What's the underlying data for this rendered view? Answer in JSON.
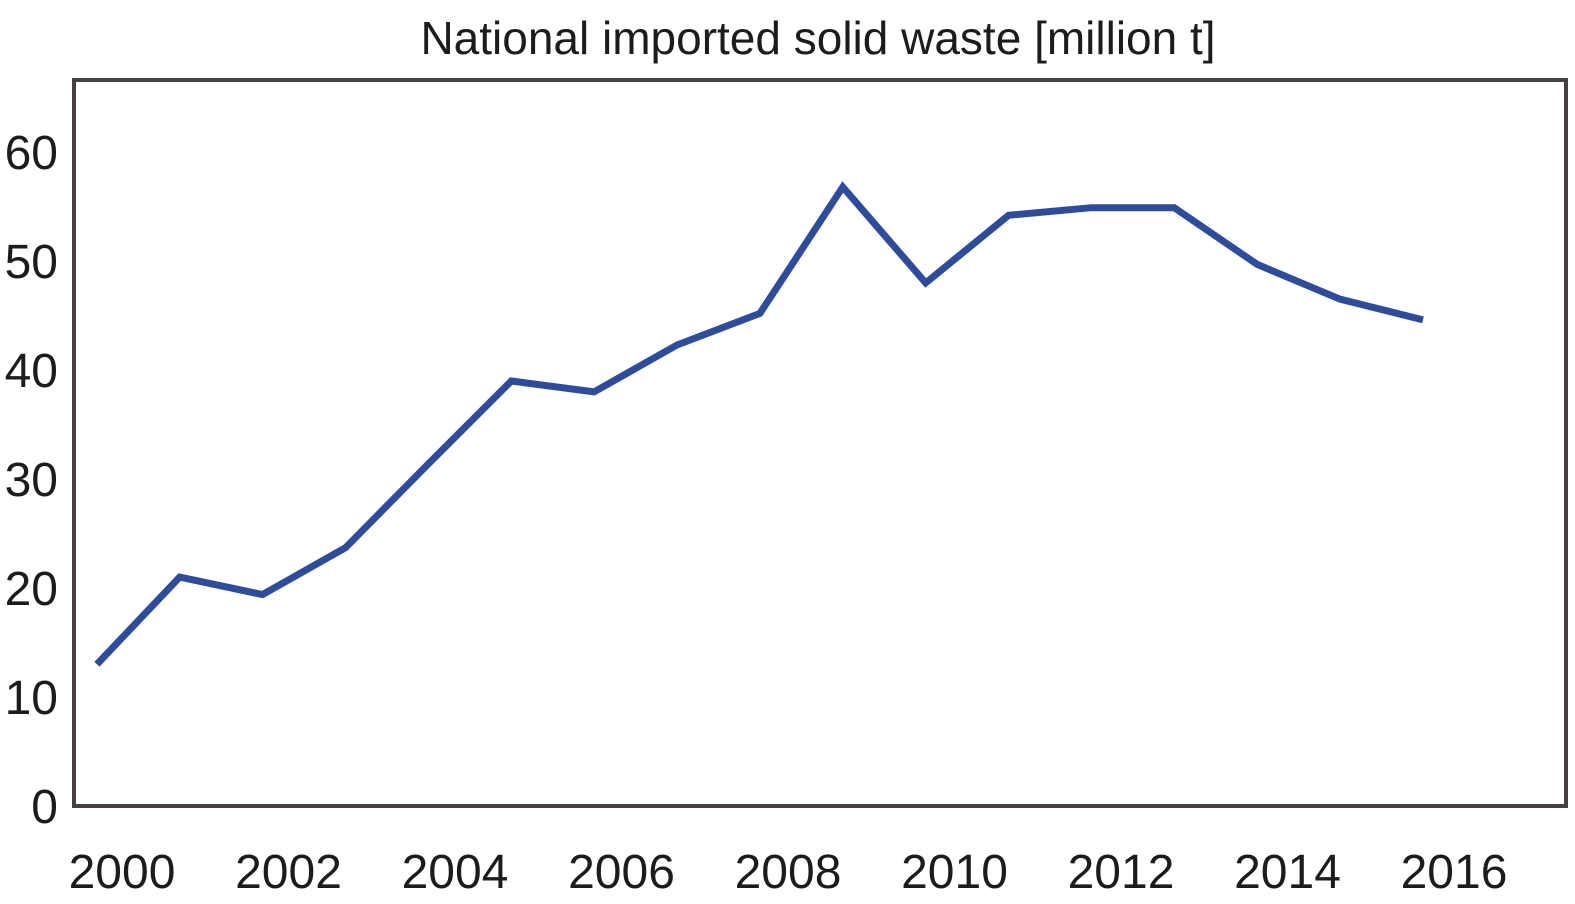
{
  "figure": {
    "title": "National imported solid waste [million t]"
  },
  "colors": {
    "line": "#2e4c9a",
    "axis": "#464040",
    "text": "#1c1c1c",
    "background": "#ffffff"
  },
  "chart_data": {
    "type": "line",
    "title": "National imported solid waste [million t]",
    "xlabel": "",
    "ylabel": "",
    "x": [
      2000,
      2001,
      2002,
      2003,
      2004,
      2005,
      2006,
      2007,
      2008,
      2009,
      2010,
      2011,
      2012,
      2013,
      2014,
      2015,
      2016
    ],
    "values": [
      13,
      21,
      19.4,
      23.7,
      31.4,
      39,
      38,
      42.3,
      45.2,
      56.8,
      48,
      54.2,
      54.9,
      54.9,
      49.7,
      46.5,
      44.6
    ],
    "x_tick_years": [
      2000,
      2002,
      2004,
      2006,
      2008,
      2010,
      2012,
      2014,
      2016
    ],
    "x_tick_labels": [
      "2000",
      "2002",
      "2004",
      "2006",
      "2008",
      "2010",
      "2012",
      "2014",
      "2016"
    ],
    "y_ticks": [
      0,
      10,
      20,
      30,
      40,
      50,
      60
    ],
    "y_tick_labels": [
      "0",
      "10",
      "20",
      "30",
      "40",
      "50",
      "60"
    ],
    "ylim": [
      0,
      66.8
    ],
    "xlim": [
      1999.7,
      2017.75
    ],
    "grid": false,
    "legend": null,
    "series_name": "National imported solid waste",
    "unit": "million t"
  }
}
